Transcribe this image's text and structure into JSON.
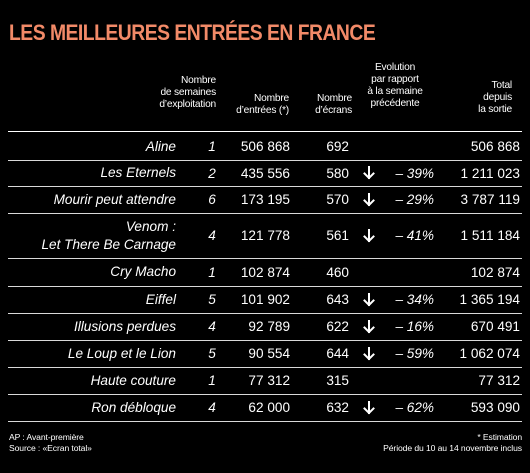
{
  "title": "LES MEILLEURES ENTRÉES EN FRANCE",
  "headers": {
    "weeks": [
      "Nombre",
      "de semaines",
      "d’exploitation"
    ],
    "entries": [
      "Nombre",
      "d’entrées (*)"
    ],
    "screens": [
      "Nombre",
      "d’écrans"
    ],
    "evolution": [
      "Evolution",
      "par rapport",
      "à la semaine",
      "précédente"
    ],
    "total": [
      "Total",
      "depuis",
      "la sortie"
    ]
  },
  "rows": [
    {
      "name": [
        "Aline"
      ],
      "weeks": "1",
      "entries": "506 868",
      "screens": "692",
      "trend": "",
      "evolution": "",
      "total": "506 868"
    },
    {
      "name": [
        "Les Eternels"
      ],
      "weeks": "2",
      "entries": "435 556",
      "screens": "580",
      "trend": "down",
      "evolution": "– 39%",
      "total": "1 211 023"
    },
    {
      "name": [
        "Mourir peut attendre"
      ],
      "weeks": "6",
      "entries": "173 195",
      "screens": "570",
      "trend": "down",
      "evolution": "– 29%",
      "total": "3 787 119"
    },
    {
      "name": [
        "Venom :",
        "Let There Be Carnage"
      ],
      "weeks": "4",
      "entries": "121 778",
      "screens": "561",
      "trend": "down",
      "evolution": "– 41%",
      "total": "1 511 184"
    },
    {
      "name": [
        "Cry Macho"
      ],
      "weeks": "1",
      "entries": "102 874",
      "screens": "460",
      "trend": "",
      "evolution": "",
      "total": "102 874"
    },
    {
      "name": [
        "Eiffel"
      ],
      "weeks": "5",
      "entries": "101 902",
      "screens": "643",
      "trend": "down",
      "evolution": "– 34%",
      "total": "1 365 194"
    },
    {
      "name": [
        "Illusions perdues"
      ],
      "weeks": "4",
      "entries": "92 789",
      "screens": "622",
      "trend": "down",
      "evolution": "– 16%",
      "total": "670 491"
    },
    {
      "name": [
        "Le Loup et le Lion"
      ],
      "weeks": "5",
      "entries": "90 554",
      "screens": "644",
      "trend": "down",
      "evolution": "– 59%",
      "total": "1 062 074"
    },
    {
      "name": [
        "Haute couture"
      ],
      "weeks": "1",
      "entries": "77 312",
      "screens": "315",
      "trend": "",
      "evolution": "",
      "total": "77 312"
    },
    {
      "name": [
        "Ron débloque"
      ],
      "weeks": "4",
      "entries": "62 000",
      "screens": "632",
      "trend": "down",
      "evolution": "– 62%",
      "total": "593 090"
    }
  ],
  "footer": {
    "left": [
      "AP : Avant-première",
      "Source : «Ecran total»"
    ],
    "right": [
      "* Estimation",
      "Période du 10 au 14 novembre inclus"
    ]
  },
  "colors": {
    "title": "#f28a68",
    "background": "#000000",
    "text": "#ffffff",
    "rule": "#d9d9d9"
  },
  "icons": {
    "trend_down": "arrow-down-icon"
  }
}
